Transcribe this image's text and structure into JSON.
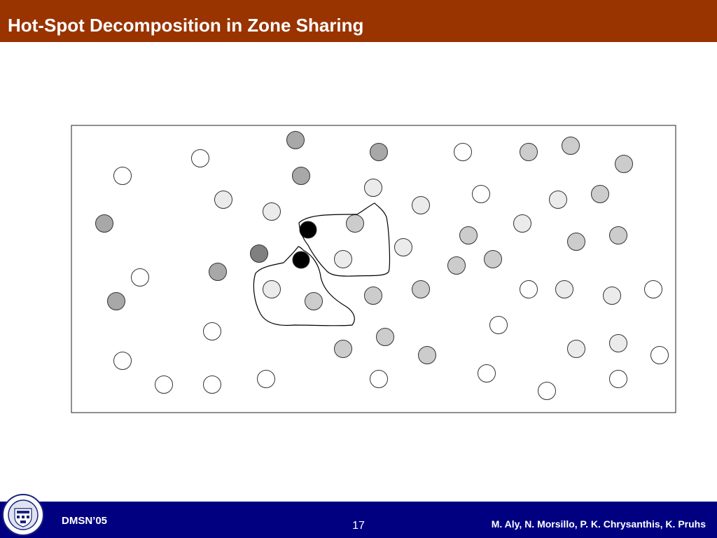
{
  "slide": {
    "title": "Hot-Spot Decomposition in Zone Sharing"
  },
  "footer": {
    "left_text": "DMSN’05",
    "page_number": "17",
    "authors": "M. Aly, N. Morsillo, P. K. Chrysanthis, K. Pruhs"
  },
  "colors": {
    "title_bar": "#993300",
    "footer_bar": "#000080",
    "node_white": "#ffffff",
    "node_light": "#ebebeb",
    "node_medium": "#cccccc",
    "node_dark": "#a8a8a8",
    "node_darker": "#808080",
    "node_black": "#000000"
  },
  "logo": {
    "name": "University of Pittsburgh seal",
    "text": "UNIVERSITY OF PITTSBURGH"
  }
}
